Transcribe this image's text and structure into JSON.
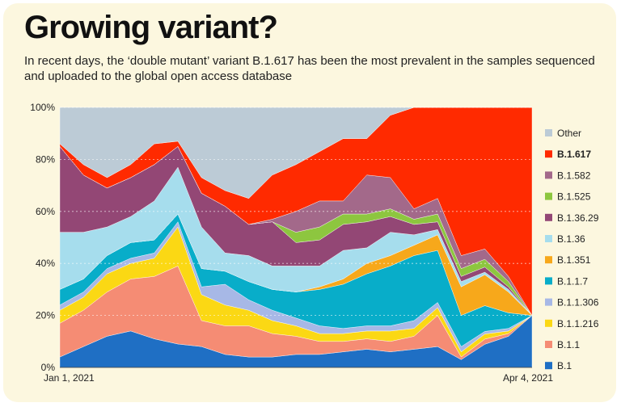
{
  "title": "Growing variant?",
  "subtitle": "In recent days, the ‘double mutant’ variant B.1.617 has been the most prevalent in the samples sequenced and uploaded to the global open access database",
  "chart_data": {
    "type": "area",
    "stacked": true,
    "normalized": true,
    "ylim": [
      0,
      100
    ],
    "y_ticks": [
      "0%",
      "20%",
      "40%",
      "60%",
      "80%",
      "100%"
    ],
    "x_ticks": [
      "Jan 1, 2021",
      "Apr 4, 2021"
    ],
    "x_index": [
      0,
      5,
      10,
      15,
      20,
      25,
      30,
      35,
      40,
      45,
      50,
      55,
      60,
      65,
      70,
      75,
      80,
      85,
      90,
      95,
      100
    ],
    "grid": true,
    "legend_position": "right",
    "series": [
      {
        "name": "B.1",
        "color": "#1f6fc4",
        "values": [
          4,
          8,
          12,
          14,
          11,
          9,
          8,
          5,
          4,
          4,
          5,
          5,
          6,
          7,
          6,
          7,
          8,
          3,
          9,
          12,
          20
        ]
      },
      {
        "name": "B.1.1",
        "color": "#f58c74",
        "values": [
          13,
          14,
          17,
          20,
          24,
          30,
          10,
          11,
          12,
          9,
          7,
          5,
          4,
          4,
          4,
          5,
          12,
          1,
          2,
          1,
          0
        ]
      },
      {
        "name": "B.1.1.216",
        "color": "#fbd814",
        "values": [
          5,
          5,
          7,
          6,
          7,
          15,
          10,
          8,
          6,
          5,
          4,
          3,
          3,
          3,
          4,
          3,
          3,
          2,
          2,
          1,
          0
        ]
      },
      {
        "name": "B.1.1.306",
        "color": "#a7b8e6",
        "values": [
          2,
          2,
          2,
          2,
          2,
          2,
          3,
          8,
          4,
          4,
          3,
          3,
          2,
          2,
          2,
          3,
          2,
          2,
          1,
          1,
          0
        ]
      },
      {
        "name": "B.1.1.7",
        "color": "#08adc9",
        "values": [
          6,
          5,
          5,
          6,
          5,
          3,
          7,
          5,
          7,
          8,
          10,
          14,
          17,
          20,
          23,
          25,
          20,
          12,
          10,
          6,
          0
        ]
      },
      {
        "name": "B.1.351",
        "color": "#f7a81b",
        "values": [
          0,
          0,
          0,
          0,
          0,
          0,
          0,
          0,
          0,
          0,
          0,
          1,
          2,
          4,
          4,
          4,
          6,
          11,
          12,
          8,
          0
        ]
      },
      {
        "name": "B.1.36",
        "color": "#a6dded",
        "values": [
          22,
          18,
          11,
          10,
          15,
          18,
          16,
          7,
          10,
          9,
          10,
          8,
          11,
          6,
          9,
          4,
          2,
          2,
          1,
          1,
          0
        ]
      },
      {
        "name": "B.1.36.29",
        "color": "#934775",
        "values": [
          33,
          22,
          15,
          15,
          14,
          8,
          13,
          18,
          12,
          17,
          9,
          10,
          10,
          10,
          6,
          4,
          3,
          2,
          2,
          1,
          0
        ]
      },
      {
        "name": "B.1.525",
        "color": "#8dc63f",
        "values": [
          0,
          0,
          0,
          0,
          0,
          0,
          0,
          0,
          0,
          0,
          4,
          5,
          4,
          3,
          3,
          2,
          3,
          3,
          3,
          2,
          0
        ]
      },
      {
        "name": "B.1.582",
        "color": "#a3698a",
        "values": [
          0,
          0,
          0,
          0,
          0,
          0,
          0,
          0,
          0,
          1,
          8,
          10,
          5,
          15,
          12,
          4,
          6,
          5,
          4,
          2,
          0
        ]
      },
      {
        "name": "B.1.617",
        "color": "#ff2a00",
        "values": [
          1,
          4,
          4,
          5,
          8,
          2,
          6,
          6,
          10,
          17,
          18,
          19,
          24,
          14,
          24,
          39,
          35,
          57,
          55,
          65,
          80
        ]
      },
      {
        "name": "Other",
        "color": "#bccbd6",
        "values": [
          14,
          22,
          27,
          22,
          14,
          13,
          27,
          32,
          35,
          26,
          22,
          17,
          12,
          12,
          3,
          0,
          0,
          0,
          0,
          0,
          0
        ]
      }
    ]
  }
}
